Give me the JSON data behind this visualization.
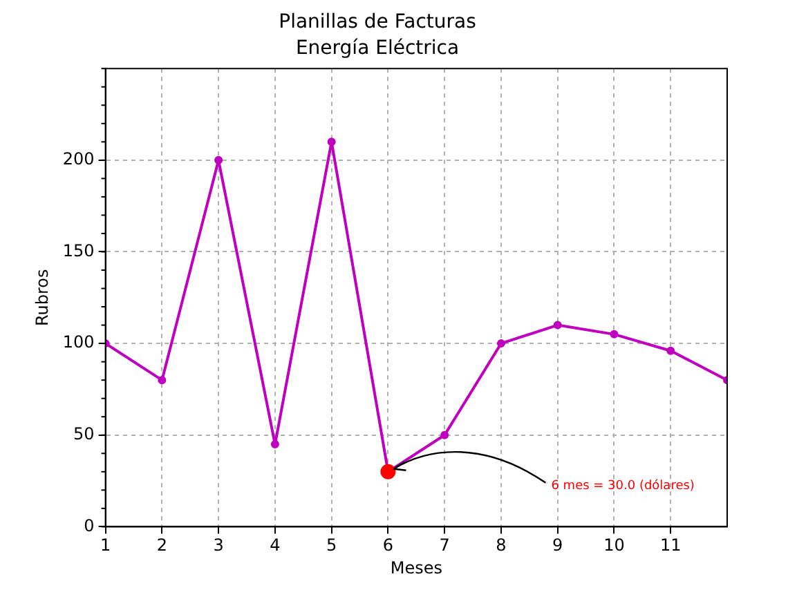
{
  "chart_data": {
    "type": "line",
    "title": "Planillas de Facturas",
    "subtitle": "Energía Eléctrica",
    "xlabel": "Meses",
    "ylabel": "Rubros",
    "x": [
      1,
      2,
      3,
      4,
      5,
      6,
      7,
      8,
      9,
      10,
      11,
      12
    ],
    "series": [
      {
        "color": "#bf00bf",
        "values": [
          100,
          80,
          200,
          45,
          210,
          30,
          50,
          100,
          110,
          105,
          96,
          80
        ]
      },
      {
        "type": "scatter",
        "color": "#ff0000",
        "x": [
          6
        ],
        "values": [
          30
        ]
      }
    ],
    "xlim": [
      1,
      12
    ],
    "xticks": [
      1,
      2,
      3,
      4,
      5,
      6,
      7,
      8,
      9,
      10,
      11
    ],
    "ylim": [
      0,
      250
    ],
    "yticks": [
      0,
      50,
      100,
      150,
      200
    ],
    "annotations": [
      {
        "text": "6 mes = 30.0 (dólares)",
        "x": 6,
        "y": 30
      }
    ],
    "grid": true,
    "line_style": "solid",
    "marker": "circle",
    "legend": false
  }
}
